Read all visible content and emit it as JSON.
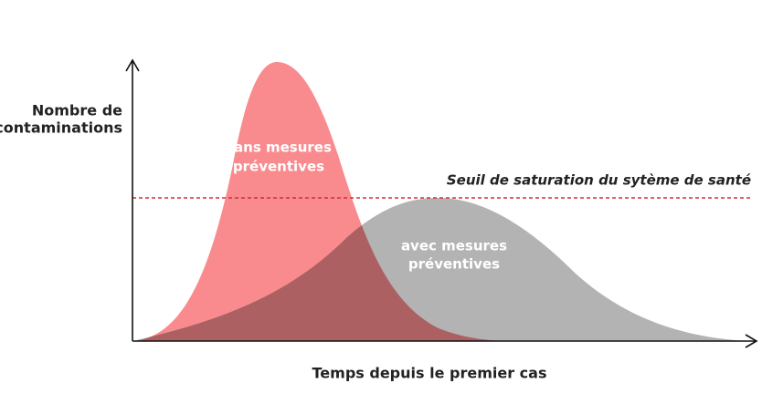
{
  "y_axis_label": [
    "Nombre de",
    "contaminations"
  ],
  "x_axis_label": "Temps depuis le premier cas",
  "threshold_label": "Seuil de saturation du sytème de santé",
  "curves": [
    {
      "label": [
        "sans mesures",
        "préventives"
      ]
    },
    {
      "label": [
        "avec mesures",
        "préventives"
      ]
    }
  ]
}
